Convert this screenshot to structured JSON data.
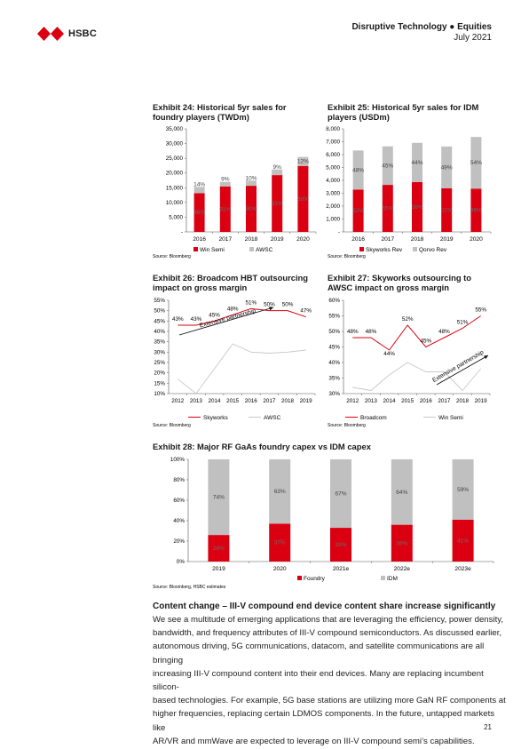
{
  "header": {
    "brand": "HSBC",
    "title": "Disruptive Technology ● Equities",
    "date": "July 2021"
  },
  "colors": {
    "red": "#db0011",
    "grey": "#c0c0c0",
    "line_grey": "#c8c8c8"
  },
  "chart_data": [
    {
      "id": "ex24",
      "type": "bar",
      "title": "Exhibit 24: Historical 5yr sales for foundry players (TWDm)",
      "categories": [
        "2016",
        "2017",
        "2018",
        "2019",
        "2020"
      ],
      "stacked": true,
      "series": [
        {
          "name": "Win Semi",
          "values": [
            13140,
            15450,
            15660,
            19280,
            22400
          ],
          "labels": [
            "86%",
            "91%",
            "90%",
            "91%",
            "88%"
          ]
        },
        {
          "name": "AWSC",
          "values": [
            2140,
            1530,
            1740,
            1910,
            3050
          ],
          "labels": [
            "14%",
            "9%",
            "10%",
            "9%",
            "12%"
          ]
        }
      ],
      "ylim": [
        0,
        35000
      ],
      "yticks": [
        "-",
        "5,000",
        "10,000",
        "15,000",
        "20,000",
        "25,000",
        "30,000",
        "35,000"
      ],
      "legend": "bottom",
      "source": "Source: Bloomberg"
    },
    {
      "id": "ex25",
      "type": "bar",
      "title": "Exhibit 25: Historical 5yr sales for IDM players (USDm)",
      "categories": [
        "2016",
        "2017",
        "2018",
        "2019",
        "2020"
      ],
      "stacked": true,
      "series": [
        {
          "name": "Skyworks Rev",
          "values": [
            3290,
            3650,
            3870,
            3380,
            3360
          ],
          "labels": [
            "52%",
            "55%",
            "56%",
            "51%",
            "46%"
          ]
        },
        {
          "name": "Qorvo Rev",
          "values": [
            3030,
            2990,
            3040,
            3250,
            4010
          ],
          "labels": [
            "48%",
            "45%",
            "44%",
            "49%",
            "54%"
          ]
        }
      ],
      "ylim": [
        0,
        8000
      ],
      "yticks": [
        "-",
        "1,000",
        "2,000",
        "3,000",
        "4,000",
        "5,000",
        "6,000",
        "7,000",
        "8,000"
      ],
      "legend": "bottom",
      "source": "Source: Bloomberg"
    },
    {
      "id": "ex26",
      "type": "line",
      "title": "Exhibit 26: Broadcom HBT outsourcing impact on gross margin",
      "x": [
        "2012",
        "2013",
        "2014",
        "2015",
        "2016",
        "2017",
        "2018",
        "2019"
      ],
      "series": [
        {
          "name": "Skyworks",
          "values": [
            43,
            43,
            45,
            48,
            51,
            50,
            50,
            47
          ],
          "labels": [
            "43%",
            "43%",
            "45%",
            "48%",
            "51%",
            "50%",
            "50%",
            "47%"
          ]
        },
        {
          "name": "AWSC",
          "values": [
            17,
            10,
            22,
            34,
            30,
            29.5,
            30,
            31
          ]
        }
      ],
      "ylim": [
        10,
        55
      ],
      "yticks": [
        "10%",
        "15%",
        "20%",
        "25%",
        "30%",
        "35%",
        "40%",
        "45%",
        "50%",
        "55%"
      ],
      "annotation": "Extensive partnership",
      "legend": "bottom",
      "source": "Source: Bloomberg"
    },
    {
      "id": "ex27",
      "type": "line",
      "title": "Exhibit 27: Skyworks outsourcing to AWSC impact on gross margin",
      "x": [
        "2012",
        "2013",
        "2014",
        "2015",
        "2016",
        "2017",
        "2018",
        "2019"
      ],
      "series": [
        {
          "name": "Broadcom",
          "values": [
            48,
            48,
            44,
            52,
            45,
            48,
            51,
            55
          ],
          "labels": [
            "48%",
            "48%",
            "44%",
            "52%",
            "45%",
            "48%",
            "51%",
            "55%"
          ]
        },
        {
          "name": "Win Semi",
          "values": [
            32,
            31,
            36,
            40,
            37,
            37,
            31,
            38
          ]
        }
      ],
      "ylim": [
        30,
        60
      ],
      "yticks": [
        "30%",
        "35%",
        "40%",
        "45%",
        "50%",
        "55%",
        "60%"
      ],
      "annotation": "Extensive partnership",
      "legend": "bottom",
      "source": "Source: Bloomberg"
    },
    {
      "id": "ex28",
      "type": "bar",
      "title": "Exhibit 28: Major RF GaAs foundry capex vs IDM capex",
      "categories": [
        "2019",
        "2020",
        "2021e",
        "2022e",
        "2023e"
      ],
      "stacked": true,
      "series": [
        {
          "name": "Foundry",
          "values": [
            26,
            37,
            33,
            36,
            41
          ],
          "labels": [
            "26%",
            "37%",
            "33%",
            "36%",
            "41%"
          ]
        },
        {
          "name": "IDM",
          "values": [
            74,
            63,
            67,
            64,
            59
          ],
          "labels": [
            "74%",
            "63%",
            "67%",
            "64%",
            "59%"
          ]
        }
      ],
      "ylim": [
        0,
        100
      ],
      "yticks": [
        "0%",
        "20%",
        "40%",
        "60%",
        "80%",
        "100%"
      ],
      "legend": "bottom",
      "source": "Source: Bloomberg, HSBC estimates"
    }
  ],
  "section": {
    "title": "Content change – III-V compound end device content share increase significantly",
    "lines": [
      "We see a multitude of emerging applications that are leveraging the efficiency, power density,",
      "bandwidth, and frequency attributes of III-V compound semiconductors. As discussed earlier,",
      "autonomous driving, 5G communications, datacom, and satellite communications are all bringing",
      "increasing III-V compound content into their end devices. Many are replacing incumbent silicon-",
      "based technologies. For example, 5G base stations are utilizing more GaN RF components at",
      "higher frequencies, replacing certain LDMOS components. In the future, untapped markets like",
      "AR/VR and mmWave are expected to leverage on III-V compound semi’s capabilities."
    ]
  },
  "page_number": "21"
}
